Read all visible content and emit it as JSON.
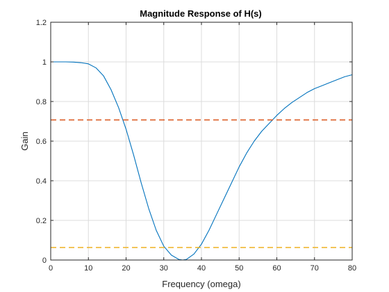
{
  "chart_data": {
    "type": "line",
    "title": "Magnitude Response of H(s)",
    "xlabel": "Frequency (omega)",
    "ylabel": "Gain",
    "xlim": [
      0,
      80
    ],
    "ylim": [
      0,
      1.2
    ],
    "x_ticks": [
      "0",
      "10",
      "20",
      "30",
      "40",
      "50",
      "60",
      "70",
      "80"
    ],
    "y_ticks": [
      "0",
      "0.2",
      "0.4",
      "0.6",
      "0.8",
      "1",
      "1.2"
    ],
    "grid": true,
    "series": [
      {
        "color": "#0072bd",
        "style": "solid",
        "x": [
          0,
          2,
          4,
          6,
          8,
          10,
          12,
          14,
          16,
          18,
          20,
          22,
          24,
          26,
          28,
          30,
          32,
          34,
          35,
          36,
          38,
          40,
          42,
          44,
          46,
          48,
          50,
          52,
          54,
          56,
          58,
          60,
          62,
          64,
          66,
          68,
          70,
          72,
          74,
          76,
          78,
          80
        ],
        "y": [
          1.0,
          1.0,
          1.0,
          0.999,
          0.996,
          0.99,
          0.97,
          0.93,
          0.86,
          0.77,
          0.66,
          0.53,
          0.39,
          0.26,
          0.15,
          0.07,
          0.025,
          0.003,
          0.0,
          0.003,
          0.03,
          0.08,
          0.15,
          0.23,
          0.31,
          0.39,
          0.47,
          0.54,
          0.6,
          0.65,
          0.69,
          0.73,
          0.765,
          0.795,
          0.82,
          0.845,
          0.865,
          0.88,
          0.895,
          0.91,
          0.925,
          0.935
        ]
      },
      {
        "color": "#d95319",
        "style": "dashed",
        "x": [
          0,
          80
        ],
        "y": [
          0.707,
          0.707
        ]
      },
      {
        "color": "#edb120",
        "style": "dashed",
        "x": [
          0,
          80
        ],
        "y": [
          0.063,
          0.063
        ]
      }
    ]
  }
}
